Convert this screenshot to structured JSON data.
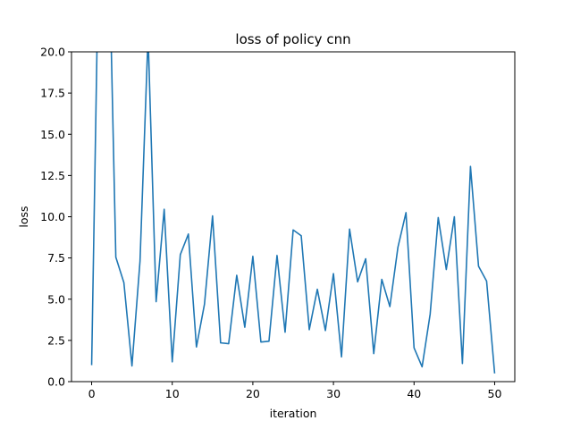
{
  "chart_data": {
    "type": "line",
    "title": "loss of policy cnn",
    "xlabel": "iteration",
    "ylabel": "loss",
    "xlim": [
      -2.5,
      52.5
    ],
    "ylim": [
      0,
      20
    ],
    "xticks": [
      0,
      10,
      20,
      30,
      40,
      50
    ],
    "xtick_labels": [
      "0",
      "10",
      "20",
      "30",
      "40",
      "50"
    ],
    "yticks": [
      0,
      2.5,
      5,
      7.5,
      10,
      12.5,
      15,
      17.5,
      20
    ],
    "ytick_labels": [
      "0.0",
      "2.5",
      "5.0",
      "7.5",
      "10.0",
      "12.5",
      "15.0",
      "17.5",
      "20.0"
    ],
    "grid": false,
    "line_color": "#1f77b4",
    "series": [
      {
        "x": [
          0,
          1,
          2,
          3,
          4,
          5,
          6,
          7,
          8,
          9,
          10,
          11,
          12,
          13,
          14,
          15,
          16,
          17,
          18,
          19,
          20,
          21,
          22,
          23,
          24,
          25,
          26,
          27,
          28,
          29,
          30,
          31,
          32,
          33,
          34,
          35,
          36,
          37,
          38,
          39,
          40,
          41,
          42,
          43,
          44,
          45,
          46,
          47,
          48,
          49,
          50
        ],
        "values": [
          1.0,
          30,
          30,
          7.55,
          6.0,
          0.95,
          7.3,
          21,
          4.85,
          10.45,
          1.2,
          7.7,
          8.95,
          2.1,
          4.7,
          10.05,
          2.35,
          2.3,
          6.45,
          3.3,
          7.6,
          2.4,
          2.45,
          7.65,
          3.0,
          9.2,
          8.85,
          3.15,
          5.6,
          3.1,
          6.55,
          1.5,
          9.25,
          6.05,
          7.45,
          1.7,
          6.2,
          4.55,
          8.15,
          10.25,
          2.05,
          0.9,
          4.1,
          9.95,
          6.8,
          10.0,
          1.1,
          13.05,
          7.0,
          6.1,
          0.5
        ]
      }
    ]
  }
}
